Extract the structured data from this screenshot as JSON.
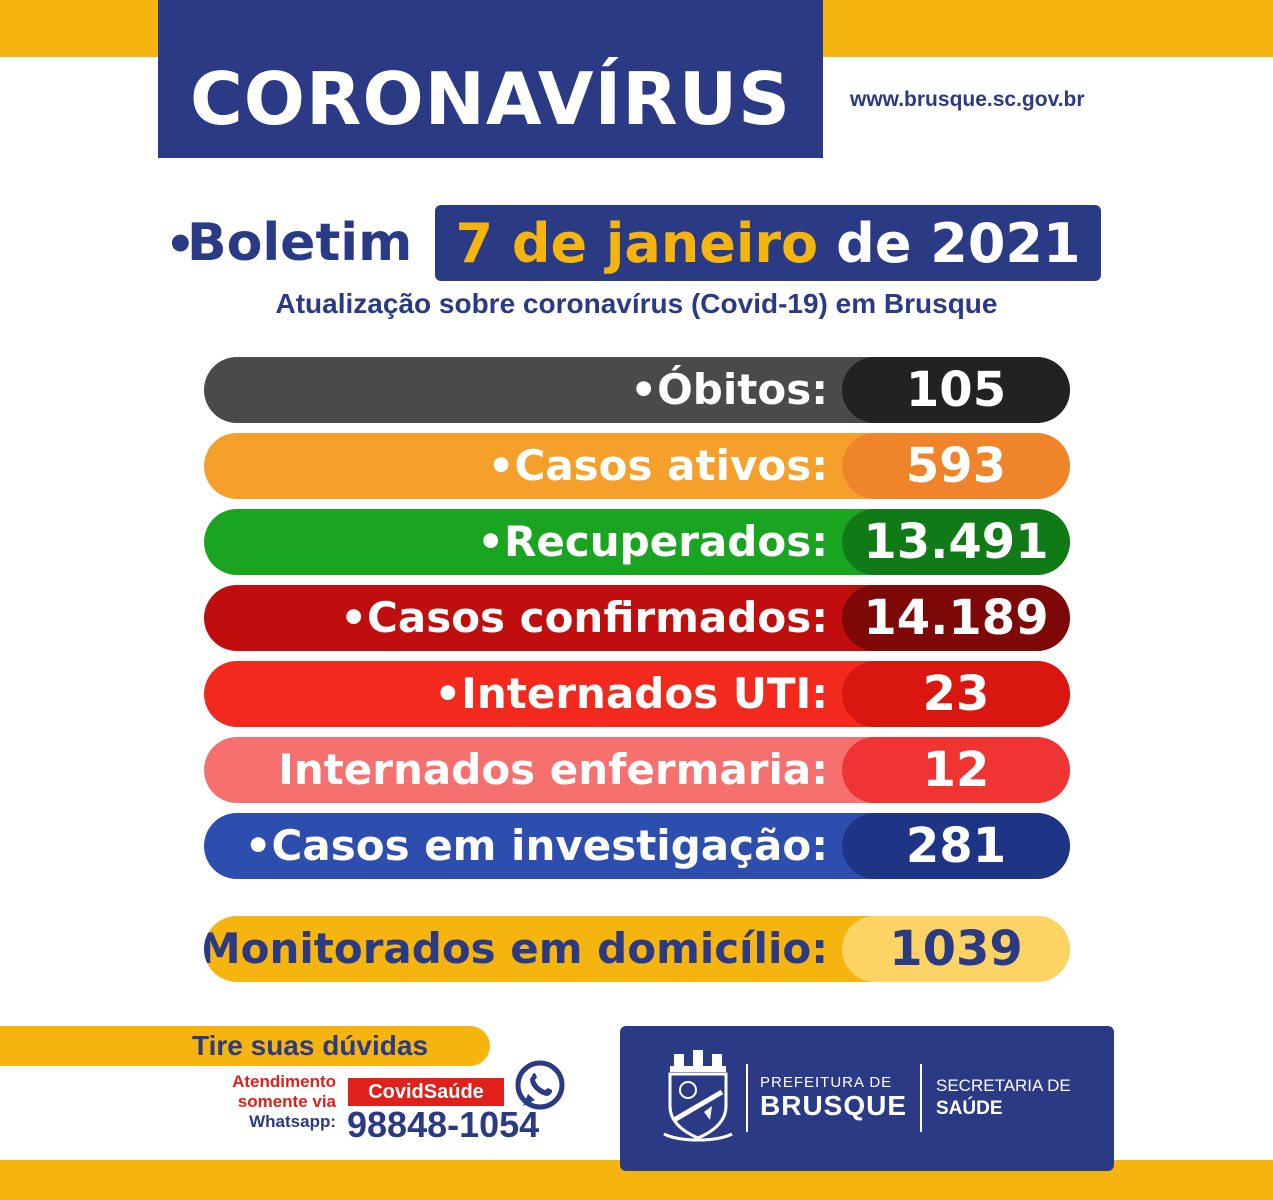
{
  "header": {
    "title": "CORONAVÍRUS",
    "website": "www.brusque.sc.gov.br"
  },
  "boletim": {
    "label": "Boletim",
    "date_highlight": "7 de janeiro",
    "date_rest": "de 2021",
    "subtitle": "Atualização sobre coronavírus (Covid-19) em Brusque"
  },
  "stats": [
    {
      "label": "•Óbitos:",
      "value": "105",
      "bar_color": "#4a4a4a",
      "value_color": "#222222"
    },
    {
      "label": "•Casos ativos:",
      "value": "593",
      "bar_color": "#f5a02a",
      "value_color": "#f0842a"
    },
    {
      "label": "•Recuperados:",
      "value": "13.491",
      "bar_color": "#1aa521",
      "value_color": "#0f7a16"
    },
    {
      "label": "•Casos confirmados:",
      "value": "14.189",
      "bar_color": "#c00d0d",
      "value_color": "#7e0808"
    },
    {
      "label": "•Internados UTI:",
      "value": "23",
      "bar_color": "#f3291e",
      "value_color": "#d9160f"
    },
    {
      "label": "Internados enfermaria:",
      "value": "12",
      "bar_color": "#f5706f",
      "value_color": "#f03434"
    },
    {
      "label": "•Casos em investigação:",
      "value": "281",
      "bar_color": "#2d4eae",
      "value_color": "#1e3484"
    }
  ],
  "monitor": {
    "label": "•Monitorados em domicílio:",
    "value": "1039",
    "bar_color": "#f6b40e",
    "value_color": "#fdd463"
  },
  "contact": {
    "heading": "Tire suas dúvidas",
    "line1": "Atendimento",
    "line2": "somente via",
    "line3": "Whatsapp:",
    "badge": "CovidSaúde",
    "phone": "98848-1054",
    "icon": "whatsapp-icon"
  },
  "logo": {
    "pref_small": "PREFEITURA DE",
    "pref_big": "BRUSQUE",
    "sec1": "SECRETARIA DE",
    "sec2": "SAÚDE",
    "crest_icon": "city-crest-icon"
  },
  "colors": {
    "navy": "#2b3a85",
    "yellow": "#f6b40e",
    "red": "#e0201b"
  }
}
